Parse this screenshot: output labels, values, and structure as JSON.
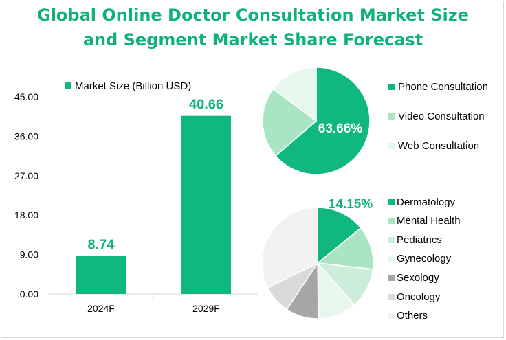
{
  "title_line1": "Global Online Doctor Consultation Market Size",
  "title_line2": "and Segment Market Share Forecast",
  "colors": {
    "accent": "#10b07b",
    "bar": "#10b77f",
    "title": "#10b07b"
  },
  "chart_data": [
    {
      "type": "bar",
      "categories": [
        "2024F",
        "2029F"
      ],
      "series": [
        {
          "name": "Market Size (Billion USD)",
          "values": [
            8.74,
            40.66
          ]
        }
      ],
      "data_labels": [
        "8.74",
        "40.66"
      ],
      "yticks": [
        "0.00",
        "9.00",
        "18.00",
        "27.00",
        "36.00",
        "45.00"
      ],
      "ylim": [
        0,
        45
      ],
      "legend_position": "top-left",
      "grid": false
    },
    {
      "type": "pie",
      "labels": [
        "Phone Consultation",
        "Video Consultation",
        "Web Consultation"
      ],
      "values": [
        63.66,
        21.5,
        14.84
      ],
      "colors": [
        "#10b77f",
        "#a9e4c3",
        "#e6f7ee"
      ],
      "data_label": "63.66%",
      "legend_position": "right"
    },
    {
      "type": "pie",
      "labels": [
        "Dermatology",
        "Mental Health",
        "Pediatrics",
        "Gynecology",
        "Sexology",
        "Oncology",
        "Others"
      ],
      "values": [
        14.15,
        12.6,
        11.8,
        11.2,
        9.6,
        8.3,
        32.35
      ],
      "colors": [
        "#10b77f",
        "#a9e4c3",
        "#caeed9",
        "#e7f7ee",
        "#a6a6a6",
        "#d9d9d9",
        "#f2f2f2"
      ],
      "data_label": "14.15%",
      "legend_position": "right"
    }
  ]
}
